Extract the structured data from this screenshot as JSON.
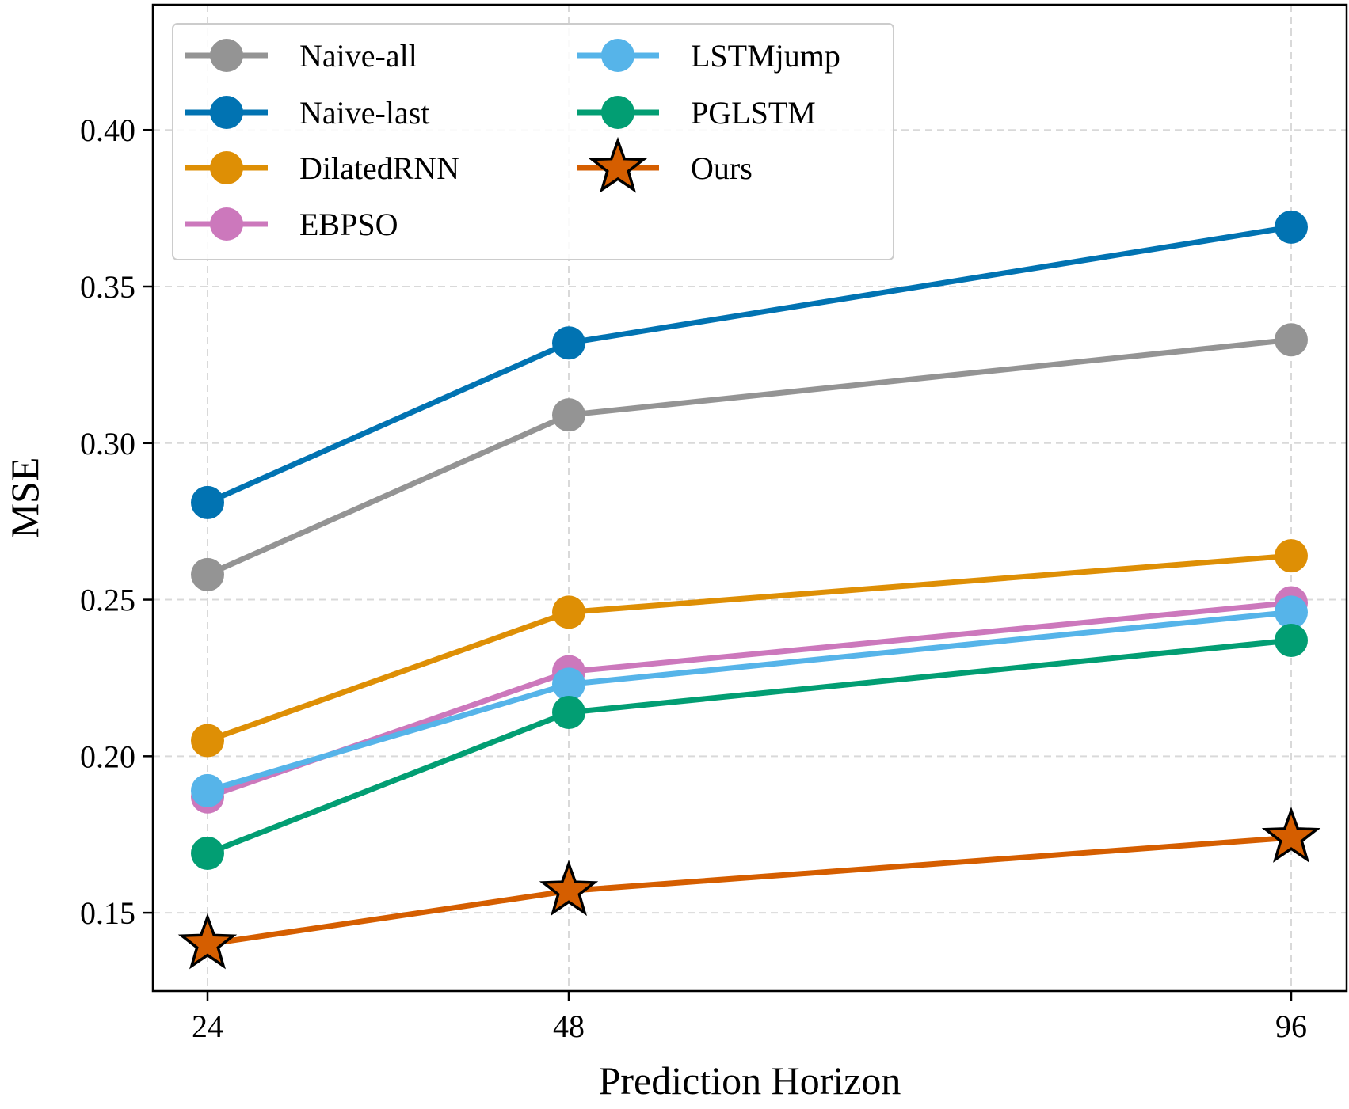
{
  "chart_data": {
    "type": "line",
    "title": "",
    "xlabel": "Prediction Horizon",
    "ylabel": "MSE",
    "x": [
      24,
      48,
      96
    ],
    "x_tick_labels": [
      "24",
      "48",
      "96"
    ],
    "y_ticks": [
      0.15,
      0.2,
      0.25,
      0.3,
      0.35,
      0.4
    ],
    "y_tick_labels": [
      "0.15",
      "0.20",
      "0.25",
      "0.30",
      "0.35",
      "0.40"
    ],
    "ylim": [
      0.125,
      0.44
    ],
    "grid": true,
    "legend_position": "top-left",
    "series": [
      {
        "name": "Naive-all",
        "color": "#949494",
        "marker": "circle",
        "values": [
          0.258,
          0.309,
          0.333
        ]
      },
      {
        "name": "Naive-last",
        "color": "#0173B2",
        "marker": "circle",
        "values": [
          0.281,
          0.332,
          0.369
        ]
      },
      {
        "name": "DilatedRNN",
        "color": "#DE8F05",
        "marker": "circle",
        "values": [
          0.205,
          0.246,
          0.264
        ]
      },
      {
        "name": "EBPSO",
        "color": "#CC78BC",
        "marker": "circle",
        "values": [
          0.187,
          0.227,
          0.249
        ]
      },
      {
        "name": "LSTMjump",
        "color": "#56B4E9",
        "marker": "circle",
        "values": [
          0.189,
          0.223,
          0.246
        ]
      },
      {
        "name": "PGLSTM",
        "color": "#029E73",
        "marker": "circle",
        "values": [
          0.169,
          0.214,
          0.237
        ]
      },
      {
        "name": "Ours",
        "color": "#D55E00",
        "marker": "star",
        "values": [
          0.14,
          0.157,
          0.174
        ]
      }
    ]
  }
}
